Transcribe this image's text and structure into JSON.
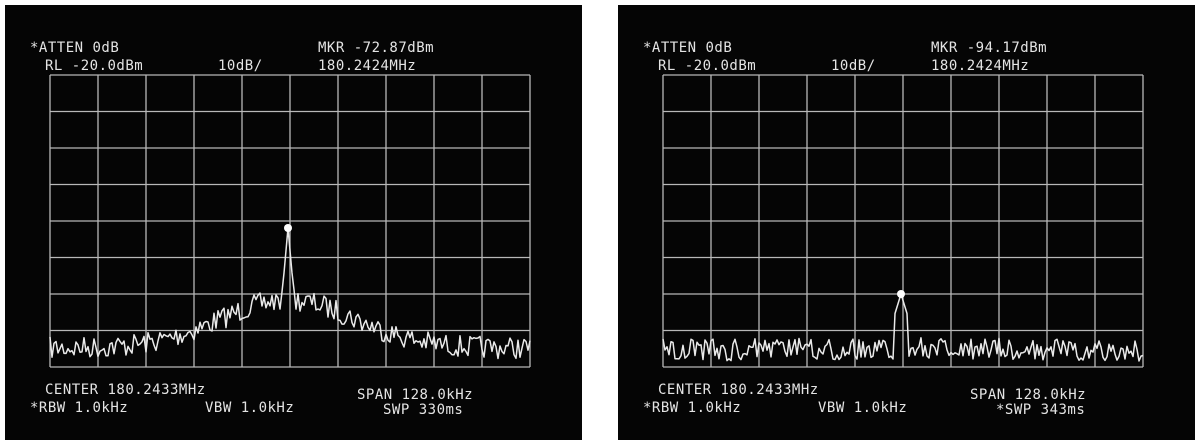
{
  "panels": [
    {
      "atten": "*ATTEN 0dB",
      "marker": "MKR -72.87dBm",
      "ref_level": "RL -20.0dBm",
      "scale": "10dB/",
      "marker_freq": "180.2424MHz",
      "center": "CENTER 180.2433MHz",
      "span": "SPAN 128.0kHz",
      "rbw": "*RBW 1.0kHz",
      "vbw": "VBW 1.0kHz",
      "sweep": "SWP 330ms"
    },
    {
      "atten": "*ATTEN 0dB",
      "marker": "MKR -94.17dBm",
      "ref_level": "RL -20.0dBm",
      "scale": "10dB/",
      "marker_freq": "180.2424MHz",
      "center": "CENTER 180.2433MHz",
      "span": "SPAN 128.0kHz",
      "rbw": "*RBW 1.0kHz",
      "vbw": "VBW 1.0kHz",
      "sweep": "*SWP 343ms"
    }
  ]
}
